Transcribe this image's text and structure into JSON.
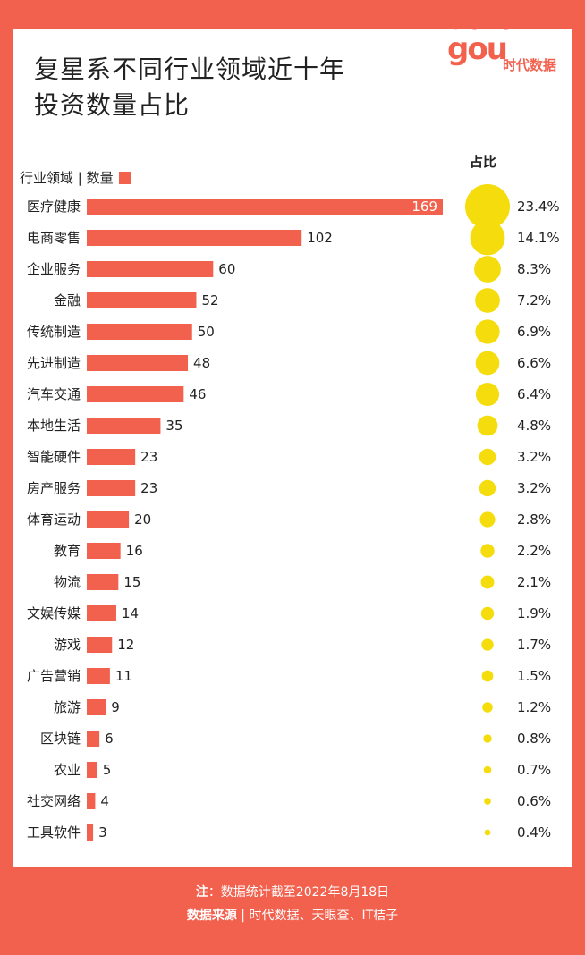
{
  "title_line1": "复星系不同行业领域近十年",
  "title_line2": "投资数量占比",
  "logo": {
    "word1": "data",
    "word2": "gou",
    "brand": "时代数据"
  },
  "legend": {
    "label": "行业领域 | 数量"
  },
  "share_header": "占比",
  "colors": {
    "bar": "#f2614e",
    "bubble": "#f5dc0d",
    "frame": "#f2614e"
  },
  "chart_data": {
    "type": "bar",
    "orientation": "horizontal",
    "categories": [
      "医疗健康",
      "电商零售",
      "企业服务",
      "金融",
      "传统制造",
      "先进制造",
      "汽车交通",
      "本地生活",
      "智能硬件",
      "房产服务",
      "体育运动",
      "教育",
      "物流",
      "文娱传媒",
      "游戏",
      "广告营销",
      "旅游",
      "区块链",
      "农业",
      "社交网络",
      "工具软件"
    ],
    "values": [
      169,
      102,
      60,
      52,
      50,
      48,
      46,
      35,
      23,
      23,
      20,
      16,
      15,
      14,
      12,
      11,
      9,
      6,
      5,
      4,
      3
    ],
    "shares": [
      "23.4%",
      "14.1%",
      "8.3%",
      "7.2%",
      "6.9%",
      "6.6%",
      "6.4%",
      "4.8%",
      "3.2%",
      "3.2%",
      "2.8%",
      "2.2%",
      "2.1%",
      "1.9%",
      "1.7%",
      "1.5%",
      "1.2%",
      "0.8%",
      "0.7%",
      "0.6%",
      "0.4%"
    ]
  },
  "footer": {
    "note_label": "注",
    "note_text": "：数据统计截至2022年8月18日",
    "source_label": "数据来源",
    "source_text": " | 时代数据、天眼查、IT桔子"
  }
}
